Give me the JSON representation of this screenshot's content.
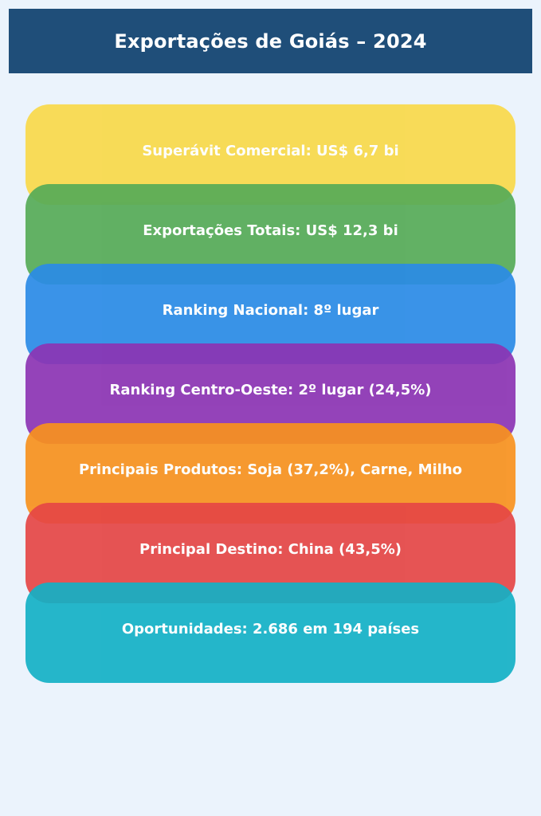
{
  "header": {
    "title": "Exportações de Goiás – 2024"
  },
  "bands": [
    {
      "label": "Superávit Comercial: US$ 6,7 bi",
      "color": "#f9d94a"
    },
    {
      "label": "Exportações Totais: US$ 12,3 bi",
      "color": "#56ab57"
    },
    {
      "label": "Ranking Nacional: 8º lugar",
      "color": "#2a8be6"
    },
    {
      "label": "Ranking Centro-Oeste: 2º lugar (24,5%)",
      "color": "#8c34b3"
    },
    {
      "label": "Principais Produtos: Soja (37,2%), Carne, Milho",
      "color": "#f8921e"
    },
    {
      "label": "Principal Destino: China (43,5%)",
      "color": "#e54645"
    },
    {
      "label": "Oportunidades: 2.686 em 194 países",
      "color": "#14b1c6"
    }
  ]
}
